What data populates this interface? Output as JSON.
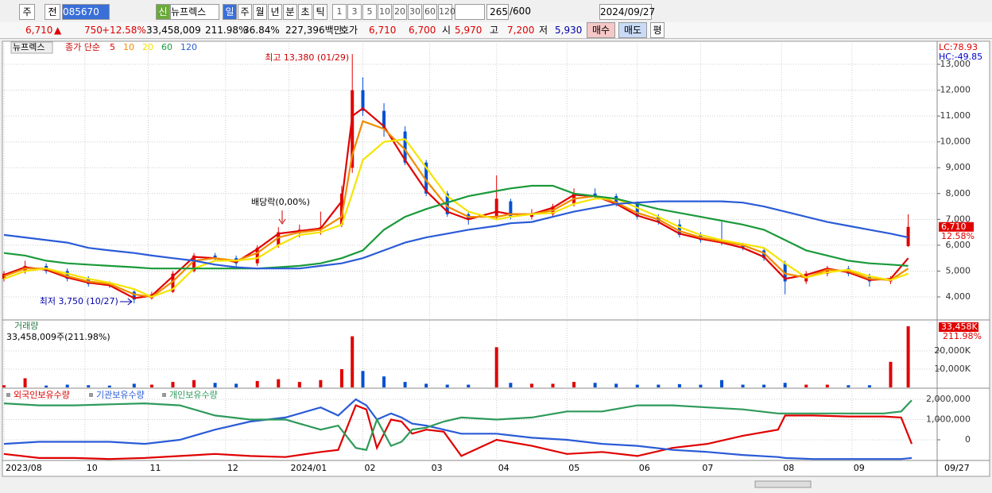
{
  "toolbar": {
    "market": "주",
    "type": "전",
    "code": "085670",
    "name": "뉴프렉스",
    "periods": [
      "일",
      "주",
      "월",
      "년",
      "분",
      "초",
      "틱"
    ],
    "intervals": [
      "1",
      "3",
      "5",
      "10",
      "20",
      "30",
      "60",
      "120"
    ],
    "count": "265",
    "max": "/600",
    "date": "2024/09/27"
  },
  "info_bar": {
    "price": "6,710",
    "arrow": "▲",
    "change": "750",
    "change_pct": "+12.58%",
    "volume": "33,458,009",
    "volume_ratio": "211.98%",
    "turnover": "36.84%",
    "amount": "227,396백만",
    "quote_label": "호가",
    "ask": "6,710",
    "bid": "6,700",
    "open_label": "시",
    "open": "5,970",
    "high_label": "고",
    "high": "7,200",
    "low_label": "저",
    "low": "5,930",
    "buy": "매수",
    "sell": "매도",
    "avg": "평"
  },
  "chart_data": [
    {
      "type": "candlestick",
      "name_tab": "뉴프렉스",
      "legend_prefix": "종가 단순",
      "up_color": "#e00000",
      "down_color": "#0050d0",
      "x": [
        0,
        6,
        12,
        18,
        24,
        30,
        37,
        42,
        48,
        54,
        60,
        66,
        72,
        78,
        84,
        90,
        96,
        99,
        102,
        108,
        114,
        120,
        126,
        132,
        140,
        144,
        150,
        156,
        162,
        168,
        174,
        180,
        186,
        192,
        198,
        204,
        210,
        216,
        222,
        228,
        234,
        240,
        246,
        252,
        257
      ],
      "open": [
        4700,
        5000,
        5200,
        5000,
        4700,
        4500,
        4200,
        3950,
        4200,
        5000,
        5600,
        5500,
        5300,
        6000,
        6500,
        6600,
        6800,
        9000,
        12000,
        11200,
        10400,
        9200,
        8000,
        7200,
        7100,
        7700,
        7100,
        7200,
        7600,
        8000,
        7900,
        7600,
        7100,
        6800,
        6400,
        6200,
        6000,
        5800,
        5300,
        4600,
        4900,
        5100,
        4800,
        4600,
        5970
      ],
      "high": [
        5000,
        5400,
        5300,
        5100,
        4800,
        4600,
        4250,
        4200,
        5000,
        5700,
        5700,
        5600,
        6000,
        6700,
        6800,
        7300,
        8300,
        13380,
        12500,
        11500,
        10600,
        9300,
        8100,
        7300,
        8700,
        7800,
        7400,
        7600,
        8200,
        8200,
        8000,
        7700,
        7200,
        7000,
        6500,
        6900,
        6100,
        5900,
        5400,
        5000,
        5200,
        5200,
        4900,
        4800,
        7200
      ],
      "low": [
        4600,
        4900,
        4900,
        4600,
        4400,
        4350,
        3750,
        3900,
        4150,
        4950,
        5400,
        5100,
        5200,
        5900,
        6300,
        6400,
        6700,
        8800,
        11000,
        10200,
        9100,
        7900,
        7100,
        6800,
        7000,
        7000,
        7000,
        7100,
        7500,
        7800,
        7500,
        7000,
        6800,
        6300,
        6100,
        6000,
        5800,
        5400,
        4100,
        4500,
        4800,
        4800,
        4400,
        4500,
        5930
      ],
      "close": [
        4900,
        5200,
        5000,
        4700,
        4500,
        4450,
        3900,
        4100,
        4900,
        5600,
        5500,
        5300,
        5900,
        6500,
        6600,
        6700,
        8000,
        12000,
        11200,
        10500,
        9200,
        8000,
        7200,
        7000,
        7800,
        7100,
        7200,
        7500,
        8000,
        7900,
        7600,
        7100,
        6900,
        6400,
        6200,
        6100,
        5900,
        5500,
        4600,
        4900,
        5100,
        4900,
        4600,
        4700,
        6710
      ],
      "series": [
        {
          "name": "5",
          "color": "#e00000",
          "values": [
            4850,
            5150,
            5050,
            4750,
            4550,
            4450,
            3950,
            4050,
            4800,
            5550,
            5500,
            5350,
            5850,
            6450,
            6550,
            6650,
            7700,
            11000,
            11300,
            10600,
            9300,
            8100,
            7300,
            7000,
            7300,
            7200,
            7200,
            7450,
            7950,
            7900,
            7600,
            7150,
            6900,
            6450,
            6250,
            6100,
            5900,
            5550,
            4700,
            4850,
            5100,
            4950,
            4650,
            4700,
            5500
          ]
        },
        {
          "name": "10",
          "color": "#f08c00",
          "values": [
            4800,
            5100,
            5100,
            4800,
            4600,
            4500,
            4100,
            4000,
            4600,
            5400,
            5500,
            5400,
            5700,
            6300,
            6500,
            6600,
            7100,
            9500,
            10800,
            10500,
            9700,
            8500,
            7500,
            7100,
            7100,
            7200,
            7200,
            7350,
            7800,
            7900,
            7650,
            7250,
            7000,
            6550,
            6300,
            6150,
            6000,
            5700,
            4900,
            4750,
            5050,
            5000,
            4700,
            4650,
            5100
          ]
        },
        {
          "name": "20",
          "color": "#f5e400",
          "values": [
            4700,
            5000,
            5100,
            4900,
            4700,
            4550,
            4300,
            4000,
            4300,
            5100,
            5400,
            5400,
            5500,
            6000,
            6400,
            6500,
            6800,
            8000,
            9300,
            10000,
            10100,
            9000,
            7900,
            7300,
            7000,
            7100,
            7200,
            7250,
            7600,
            7800,
            7800,
            7450,
            7100,
            6700,
            6400,
            6200,
            6050,
            5900,
            5300,
            4750,
            4950,
            5050,
            4800,
            4650,
            4900
          ]
        },
        {
          "name": "60",
          "color": "#1a9a3a",
          "values": [
            5700,
            5600,
            5400,
            5300,
            5250,
            5200,
            5150,
            5100,
            5100,
            5100,
            5100,
            5100,
            5100,
            5150,
            5200,
            5300,
            5500,
            5650,
            5800,
            6600,
            7100,
            7400,
            7650,
            7900,
            8100,
            8200,
            8300,
            8300,
            8000,
            7900,
            7800,
            7600,
            7400,
            7250,
            7100,
            6950,
            6800,
            6600,
            6200,
            5800,
            5600,
            5400,
            5300,
            5250,
            5200
          ]
        },
        {
          "name": "120",
          "color": "#2a5bd7",
          "values": [
            6400,
            6300,
            6200,
            6100,
            5900,
            5800,
            5700,
            5600,
            5500,
            5400,
            5250,
            5150,
            5100,
            5100,
            5100,
            5200,
            5300,
            5400,
            5500,
            5800,
            6100,
            6300,
            6450,
            6600,
            6750,
            6850,
            6900,
            7100,
            7300,
            7450,
            7600,
            7650,
            7700,
            7700,
            7700,
            7700,
            7650,
            7500,
            7300,
            7100,
            6900,
            6750,
            6600,
            6450,
            6300
          ]
        }
      ],
      "xlim": [
        0,
        265
      ],
      "xticks": [
        {
          "value": 0,
          "label": "2023/08"
        },
        {
          "value": 23,
          "label": "10"
        },
        {
          "value": 41,
          "label": "11"
        },
        {
          "value": 63,
          "label": "12"
        },
        {
          "value": 81,
          "label": "2024/01"
        },
        {
          "value": 102,
          "label": "02"
        },
        {
          "value": 121,
          "label": "03"
        },
        {
          "value": 140,
          "label": "04"
        },
        {
          "value": 160,
          "label": "05"
        },
        {
          "value": 180,
          "label": "06"
        },
        {
          "value": 198,
          "label": "07"
        },
        {
          "value": 221,
          "label": "08"
        },
        {
          "value": 241,
          "label": "09"
        }
      ],
      "end_label": "09/27",
      "ylim": [
        3140,
        13800
      ],
      "yticks": [
        {
          "value": 4000,
          "label": "4,000"
        },
        {
          "value": 5000,
          "label": "5,000"
        },
        {
          "value": 6000,
          "label": "6,000"
        },
        {
          "value": 7000,
          "label": "7,000"
        },
        {
          "value": 8000,
          "label": "8,000"
        },
        {
          "value": 9000,
          "label": "9,000"
        },
        {
          "value": 10000,
          "label": "10,000"
        },
        {
          "value": 11000,
          "label": "11,000"
        },
        {
          "value": 12000,
          "label": "12,000"
        },
        {
          "value": 13000,
          "label": "13,000"
        }
      ],
      "grid": true,
      "annotations": [
        {
          "text": "최고 13,380 (01/29)"
        },
        {
          "text": "배당락(0,00%)"
        },
        {
          "text": "최저 3,750 (10/27)"
        }
      ],
      "lc": "LC:78.93",
      "hc": "HC:-49.85",
      "last_label": "6,710",
      "last_change": "12.58%"
    },
    {
      "type": "bar",
      "title": "거래량",
      "subtitle": "33,458,009주(211.98%)",
      "x": [
        0,
        6,
        12,
        18,
        24,
        30,
        37,
        42,
        48,
        54,
        60,
        66,
        72,
        78,
        84,
        90,
        96,
        99,
        102,
        108,
        114,
        120,
        126,
        132,
        140,
        144,
        150,
        156,
        162,
        168,
        174,
        180,
        186,
        192,
        198,
        204,
        210,
        216,
        222,
        228,
        234,
        240,
        246,
        252,
        257
      ],
      "values": [
        1200,
        5000,
        1000,
        1500,
        1200,
        1000,
        2000,
        1500,
        3000,
        4000,
        2500,
        2000,
        3500,
        4500,
        3000,
        4000,
        10000,
        28000,
        9000,
        6000,
        3000,
        2000,
        1500,
        1500,
        22000,
        2500,
        2000,
        2000,
        3000,
        2500,
        2000,
        1500,
        1500,
        1800,
        1500,
        4000,
        1500,
        1500,
        2500,
        1500,
        1500,
        1200,
        1200,
        14000,
        33458
      ],
      "last_value_label": "33,458K",
      "last_ratio_label": "211.98%",
      "ylim": [
        0,
        36500
      ],
      "yticks": [
        {
          "value": 10000,
          "label": "10,000K"
        },
        {
          "value": 20000,
          "label": "20,000K"
        }
      ],
      "grid": true
    },
    {
      "type": "line",
      "x": [
        0,
        10,
        20,
        30,
        40,
        50,
        60,
        70,
        80,
        90,
        95,
        100,
        103,
        106,
        110,
        113,
        116,
        120,
        125,
        130,
        140,
        150,
        160,
        170,
        180,
        190,
        200,
        210,
        220,
        222,
        230,
        240,
        250,
        255,
        258
      ],
      "series": [
        {
          "name": "외국인보유수량",
          "color": "#e00000",
          "values": [
            -700000,
            -900000,
            -900000,
            -950000,
            -900000,
            -800000,
            -700000,
            -800000,
            -850000,
            -600000,
            -500000,
            1700000,
            1500000,
            -400000,
            1000000,
            900000,
            300000,
            500000,
            400000,
            -800000,
            0,
            -300000,
            -700000,
            -600000,
            -800000,
            -400000,
            -200000,
            200000,
            500000,
            1200000,
            1200000,
            1150000,
            1150000,
            1100000,
            -200000
          ]
        },
        {
          "name": "기관보유수량",
          "color": "#2a5bd7",
          "values": [
            -200000,
            -100000,
            -100000,
            -100000,
            -200000,
            0,
            500000,
            900000,
            1100000,
            1600000,
            1200000,
            2000000,
            1700000,
            1000000,
            1300000,
            1100000,
            800000,
            700000,
            500000,
            300000,
            300000,
            100000,
            0,
            -200000,
            -300000,
            -500000,
            -600000,
            -750000,
            -850000,
            -900000,
            -950000,
            -950000,
            -950000,
            -950000,
            -900000
          ]
        },
        {
          "name": "개인보유수량",
          "color": "#2e9a5a",
          "values": [
            1800000,
            1700000,
            1700000,
            1750000,
            1800000,
            1700000,
            1200000,
            1000000,
            1000000,
            500000,
            700000,
            -400000,
            -500000,
            1000000,
            -300000,
            -100000,
            500000,
            600000,
            900000,
            1100000,
            1000000,
            1100000,
            1400000,
            1400000,
            1700000,
            1700000,
            1600000,
            1500000,
            1300000,
            1300000,
            1300000,
            1300000,
            1300000,
            1400000,
            1950000
          ]
        }
      ],
      "ylim": [
        -1020000,
        2430000
      ],
      "yticks": [
        {
          "value": 2000000,
          "label": "2,000,000"
        },
        {
          "value": 1000000,
          "label": "1,000,000"
        },
        0
      ],
      "grid": true
    }
  ]
}
